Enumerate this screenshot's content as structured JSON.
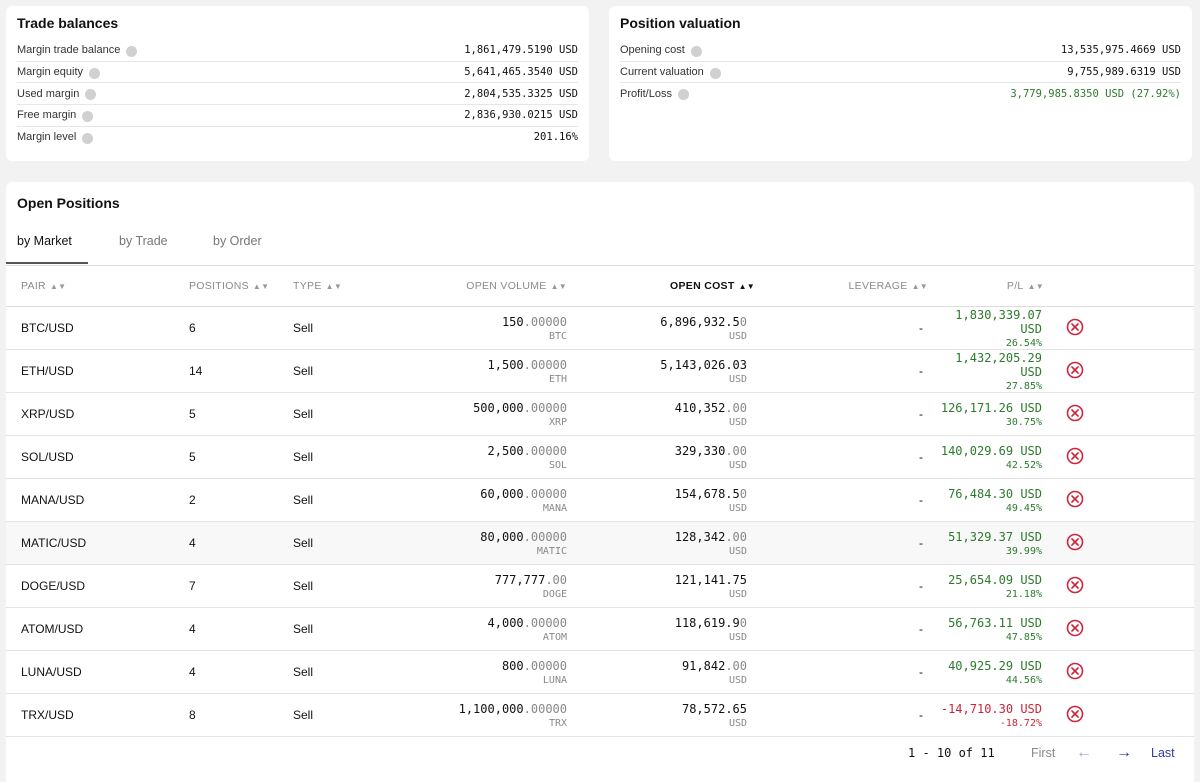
{
  "trade_balances": {
    "title": "Trade balances",
    "rows": [
      {
        "label": "Margin trade balance",
        "value": "1,861,479.5190 USD"
      },
      {
        "label": "Margin equity",
        "value": "5,641,465.3540 USD"
      },
      {
        "label": "Used margin",
        "value": "2,804,535.3325 USD"
      },
      {
        "label": "Free margin",
        "value": "2,836,930.0215 USD"
      },
      {
        "label": "Margin level",
        "value": "201.16%"
      }
    ]
  },
  "position_valuation": {
    "title": "Position valuation",
    "rows": [
      {
        "label": "Opening cost",
        "value": "13,535,975.4669 USD"
      },
      {
        "label": "Current valuation",
        "value": "9,755,989.6319 USD"
      },
      {
        "label": "Profit/Loss",
        "value": "3,779,985.8350 USD (27.92%)"
      }
    ]
  },
  "open_positions": {
    "title": "Open Positions",
    "tabs": [
      "by Market",
      "by Trade",
      "by Order"
    ],
    "columns": {
      "pair": "PAIR",
      "positions": "POSITIONS",
      "type": "TYPE",
      "open_volume": "OPEN VOLUME",
      "open_cost": "OPEN COST",
      "leverage": "LEVERAGE",
      "pl": "P/L"
    },
    "rows": [
      {
        "pair": "BTC/USD",
        "positions": "6",
        "type": "Sell",
        "vol_main": "150",
        "vol_dim": ".00000",
        "vol_unit": "BTC",
        "cost_main": "6,896,932.5",
        "cost_dim": "0",
        "cost_unit": "USD",
        "leverage": "-",
        "pl": "1,830,339.07 USD",
        "pl_pct": "26.54%",
        "negative": false
      },
      {
        "pair": "ETH/USD",
        "positions": "14",
        "type": "Sell",
        "vol_main": "1,500",
        "vol_dim": ".00000",
        "vol_unit": "ETH",
        "cost_main": "5,143,026.03",
        "cost_dim": "",
        "cost_unit": "USD",
        "leverage": "-",
        "pl": "1,432,205.29 USD",
        "pl_pct": "27.85%",
        "negative": false
      },
      {
        "pair": "XRP/USD",
        "positions": "5",
        "type": "Sell",
        "vol_main": "500,000",
        "vol_dim": ".00000",
        "vol_unit": "XRP",
        "cost_main": "410,352",
        "cost_dim": ".00",
        "cost_unit": "USD",
        "leverage": "-",
        "pl": "126,171.26 USD",
        "pl_pct": "30.75%",
        "negative": false
      },
      {
        "pair": "SOL/USD",
        "positions": "5",
        "type": "Sell",
        "vol_main": "2,500",
        "vol_dim": ".00000",
        "vol_unit": "SOL",
        "cost_main": "329,330",
        "cost_dim": ".00",
        "cost_unit": "USD",
        "leverage": "-",
        "pl": "140,029.69 USD",
        "pl_pct": "42.52%",
        "negative": false
      },
      {
        "pair": "MANA/USD",
        "positions": "2",
        "type": "Sell",
        "vol_main": "60,000",
        "vol_dim": ".00000",
        "vol_unit": "MANA",
        "cost_main": "154,678.5",
        "cost_dim": "0",
        "cost_unit": "USD",
        "leverage": "-",
        "pl": "76,484.30 USD",
        "pl_pct": "49.45%",
        "negative": false
      },
      {
        "pair": "MATIC/USD",
        "positions": "4",
        "type": "Sell",
        "vol_main": "80,000",
        "vol_dim": ".00000",
        "vol_unit": "MATIC",
        "cost_main": "128,342",
        "cost_dim": ".00",
        "cost_unit": "USD",
        "leverage": "-",
        "pl": "51,329.37 USD",
        "pl_pct": "39.99%",
        "negative": false
      },
      {
        "pair": "DOGE/USD",
        "positions": "7",
        "type": "Sell",
        "vol_main": "777,777",
        "vol_dim": ".00",
        "vol_unit": "DOGE",
        "cost_main": "121,141.75",
        "cost_dim": "",
        "cost_unit": "USD",
        "leverage": "-",
        "pl": "25,654.09 USD",
        "pl_pct": "21.18%",
        "negative": false
      },
      {
        "pair": "ATOM/USD",
        "positions": "4",
        "type": "Sell",
        "vol_main": "4,000",
        "vol_dim": ".00000",
        "vol_unit": "ATOM",
        "cost_main": "118,619.9",
        "cost_dim": "0",
        "cost_unit": "USD",
        "leverage": "-",
        "pl": "56,763.11 USD",
        "pl_pct": "47.85%",
        "negative": false
      },
      {
        "pair": "LUNA/USD",
        "positions": "4",
        "type": "Sell",
        "vol_main": "800",
        "vol_dim": ".00000",
        "vol_unit": "LUNA",
        "cost_main": "91,842",
        "cost_dim": ".00",
        "cost_unit": "USD",
        "leverage": "-",
        "pl": "40,925.29 USD",
        "pl_pct": "44.56%",
        "negative": false
      },
      {
        "pair": "TRX/USD",
        "positions": "8",
        "type": "Sell",
        "vol_main": "1,100,000",
        "vol_dim": ".00000",
        "vol_unit": "TRX",
        "cost_main": "78,572.65",
        "cost_dim": "",
        "cost_unit": "USD",
        "leverage": "-",
        "pl": "-14,710.30 USD",
        "pl_pct": "-18.72%",
        "negative": true
      }
    ],
    "pagination": {
      "range": "1 - 10 of 11",
      "first": "First",
      "prev": "←",
      "next": "→",
      "last": "Last"
    }
  },
  "colors": {
    "positive": "#2d7a2d",
    "negative": "#d0243b",
    "accent": "#2a3aa8"
  }
}
